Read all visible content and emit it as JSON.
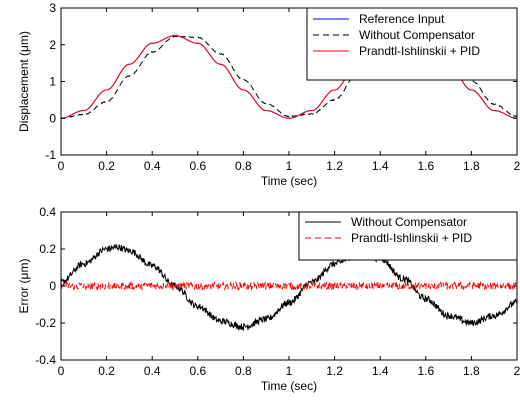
{
  "chart_data": [
    {
      "type": "line",
      "xlabel": "Time (sec)",
      "ylabel": "Displacement (μm)",
      "xlim": [
        0,
        2
      ],
      "ylim": [
        -1,
        3
      ],
      "xticks": [
        "0",
        "0.2",
        "0.4",
        "0.6",
        "0.8",
        "1",
        "1.2",
        "1.4",
        "1.6",
        "1.8",
        "2"
      ],
      "yticks": [
        "-1",
        "0",
        "1",
        "2",
        "3"
      ],
      "grid": false,
      "legend_position": "top-right",
      "series": [
        {
          "name": "Reference Input",
          "color": "#0000ff",
          "style": "solid",
          "x": [
            0,
            0.1,
            0.2,
            0.3,
            0.4,
            0.5,
            0.6,
            0.7,
            0.8,
            0.9,
            1.0,
            1.1,
            1.2,
            1.3,
            1.4,
            1.5,
            1.6,
            1.7,
            1.8,
            1.9,
            2.0
          ],
          "y": [
            0.0,
            0.21,
            0.77,
            1.47,
            2.04,
            2.25,
            2.04,
            1.47,
            0.77,
            0.21,
            0.0,
            0.21,
            0.77,
            1.47,
            2.04,
            2.25,
            2.04,
            1.47,
            0.77,
            0.21,
            0.0
          ]
        },
        {
          "name": "Without Compensator",
          "color": "#000000",
          "style": "dashed",
          "x": [
            0,
            0.1,
            0.2,
            0.3,
            0.4,
            0.5,
            0.6,
            0.7,
            0.8,
            0.9,
            1.0,
            1.1,
            1.2,
            1.3,
            1.4,
            1.5,
            1.6,
            1.7,
            1.8,
            1.9,
            2.0
          ],
          "y": [
            0.0,
            0.1,
            0.45,
            1.15,
            1.8,
            2.22,
            2.2,
            1.75,
            1.05,
            0.4,
            0.05,
            0.12,
            0.5,
            1.2,
            1.85,
            2.22,
            2.18,
            1.72,
            1.02,
            0.38,
            0.05
          ]
        },
        {
          "name": "Prandtl-Ishlinskii + PID",
          "color": "#ff0000",
          "style": "solid",
          "x": [
            0,
            0.1,
            0.2,
            0.3,
            0.4,
            0.5,
            0.6,
            0.7,
            0.8,
            0.9,
            1.0,
            1.1,
            1.2,
            1.3,
            1.4,
            1.5,
            1.6,
            1.7,
            1.8,
            1.9,
            2.0
          ],
          "y": [
            0.0,
            0.21,
            0.77,
            1.47,
            2.04,
            2.25,
            2.04,
            1.47,
            0.77,
            0.21,
            0.0,
            0.21,
            0.77,
            1.47,
            2.04,
            2.25,
            2.04,
            1.47,
            0.77,
            0.21,
            0.0
          ]
        }
      ]
    },
    {
      "type": "line",
      "xlabel": "Time (sec)",
      "ylabel": "Error (μm)",
      "xlim": [
        0,
        2
      ],
      "ylim": [
        -0.4,
        0.4
      ],
      "xticks": [
        "0",
        "0.2",
        "0.4",
        "0.6",
        "0.8",
        "1",
        "1.2",
        "1.4",
        "1.6",
        "1.8",
        "2"
      ],
      "yticks": [
        "-0.4",
        "-0.2",
        "0",
        "0.2",
        "0.4"
      ],
      "grid": false,
      "legend_position": "top-right",
      "series": [
        {
          "name": "Without Compensator",
          "color": "#000000",
          "style": "solid",
          "x": [
            0,
            0.1,
            0.2,
            0.25,
            0.3,
            0.4,
            0.5,
            0.6,
            0.7,
            0.8,
            0.9,
            1.0,
            1.1,
            1.2,
            1.3,
            1.4,
            1.5,
            1.6,
            1.7,
            1.8,
            1.9,
            2.0
          ],
          "y": [
            0.02,
            0.12,
            0.2,
            0.21,
            0.19,
            0.11,
            0.0,
            -0.11,
            -0.19,
            -0.22,
            -0.18,
            -0.09,
            0.02,
            0.12,
            0.17,
            0.15,
            0.04,
            -0.07,
            -0.16,
            -0.2,
            -0.16,
            -0.09
          ]
        },
        {
          "name": "Prandtl-Ishlinskii + PID",
          "color": "#ff0000",
          "style": "dashed",
          "x": [
            0,
            0.2,
            0.4,
            0.6,
            0.8,
            1.0,
            1.2,
            1.4,
            1.6,
            1.8,
            2.0
          ],
          "y": [
            0,
            0,
            0,
            0,
            0,
            0,
            0,
            0,
            0,
            0,
            0
          ]
        }
      ]
    }
  ]
}
